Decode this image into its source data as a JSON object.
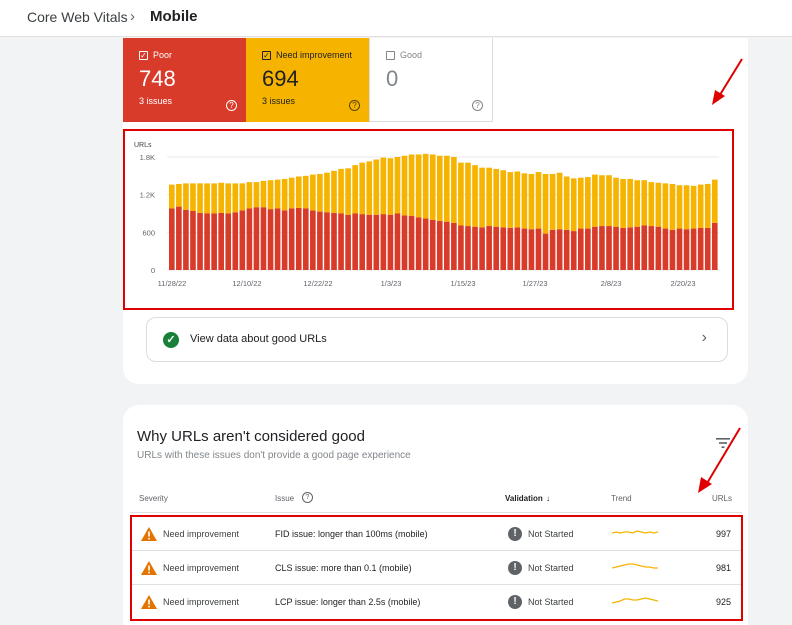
{
  "breadcrumb": {
    "parent": "Core Web Vitals",
    "current": "Mobile"
  },
  "summary": [
    {
      "label": "Poor",
      "value": "748",
      "issues": "3 issues",
      "checked": true
    },
    {
      "label": "Need improvement",
      "value": "694",
      "issues": "3 issues",
      "checked": true
    },
    {
      "label": "Good",
      "value": "0",
      "issues": "",
      "checked": false
    }
  ],
  "colors": {
    "poor": "#d93b2b",
    "need": "#f6b400",
    "good": "#188038",
    "annotation": "#e00000"
  },
  "chart_data": {
    "type": "bar",
    "stacked": true,
    "ylabel": "URLs",
    "yticks": [
      "0",
      "600",
      "1.2K",
      "1.8K"
    ],
    "ylim": [
      0,
      1800
    ],
    "xticks": [
      "11/28/22",
      "12/10/22",
      "12/22/22",
      "1/3/23",
      "1/15/23",
      "1/27/23",
      "2/8/23",
      "2/20/23"
    ],
    "series": [
      {
        "name": "Poor",
        "color": "#d93b2b",
        "values": [
          980,
          1010,
          960,
          940,
          910,
          900,
          900,
          910,
          900,
          920,
          950,
          980,
          1000,
          1000,
          970,
          980,
          950,
          980,
          990,
          980,
          950,
          930,
          920,
          910,
          900,
          880,
          900,
          890,
          880,
          880,
          890,
          880,
          900,
          870,
          860,
          840,
          820,
          800,
          780,
          770,
          750,
          710,
          700,
          690,
          680,
          700,
          690,
          680,
          670,
          680,
          660,
          650,
          660,
          580,
          640,
          650,
          640,
          620,
          660,
          660,
          690,
          700,
          700,
          690,
          670,
          680,
          690,
          710,
          700,
          690,
          660,
          640,
          660,
          650,
          660,
          670,
          670,
          750
        ]
      },
      {
        "name": "Need improvement",
        "color": "#f6b400",
        "values": [
          380,
          360,
          420,
          440,
          470,
          480,
          480,
          480,
          480,
          460,
          430,
          420,
          400,
          420,
          460,
          460,
          500,
          490,
          500,
          520,
          570,
          600,
          630,
          670,
          710,
          740,
          770,
          820,
          850,
          880,
          900,
          900,
          900,
          950,
          980,
          1000,
          1030,
          1040,
          1040,
          1050,
          1050,
          1000,
          1010,
          980,
          950,
          930,
          920,
          910,
          890,
          890,
          880,
          880,
          900,
          950,
          890,
          900,
          850,
          840,
          810,
          820,
          830,
          810,
          810,
          780,
          780,
          770,
          740,
          720,
          700,
          700,
          720,
          730,
          690,
          700,
          680,
          690,
          700,
          690
        ]
      }
    ]
  },
  "good_urls_link": {
    "label": "View data about good URLs"
  },
  "issues_section": {
    "title": "Why URLs aren't considered good",
    "subtitle": "URLs with these issues don't provide a good page experience",
    "columns": {
      "severity": "Severity",
      "issue": "Issue",
      "validation": "Validation",
      "trend": "Trend",
      "urls": "URLs"
    },
    "rows": [
      {
        "severity": "Need improvement",
        "issue": "FID issue: longer than 100ms (mobile)",
        "validation": "Not Started",
        "urls": "997",
        "trend": [
          5,
          4,
          5,
          4,
          4,
          5,
          3,
          4,
          5,
          4,
          5,
          4
        ]
      },
      {
        "severity": "Need improvement",
        "issue": "CLS issue: more than 0.1 (mobile)",
        "validation": "Not Started",
        "urls": "981",
        "trend": [
          6,
          5,
          4,
          3,
          2,
          2,
          3,
          4,
          5,
          5,
          6,
          6
        ]
      },
      {
        "severity": "Need improvement",
        "issue": "LCP issue: longer than 2.5s (mobile)",
        "validation": "Not Started",
        "urls": "925",
        "trend": [
          7,
          6,
          5,
          3,
          3,
          4,
          4,
          3,
          2,
          3,
          4,
          5
        ]
      }
    ]
  }
}
